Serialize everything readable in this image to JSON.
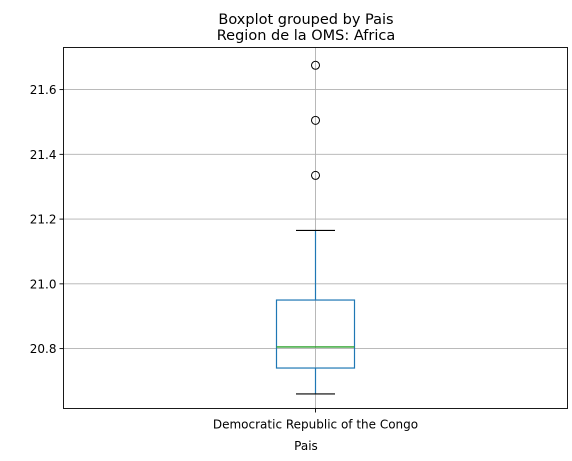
{
  "chart_data": {
    "type": "boxplot",
    "suptitle": "Boxplot grouped by Pais",
    "title": "Region de la OMS: Africa",
    "xlabel": "Pais",
    "ylabel": "",
    "categories": [
      "Democratic Republic of the Congo"
    ],
    "ylim": [
      20.615,
      21.73
    ],
    "yticks": [
      20.8,
      21.0,
      21.2,
      21.4,
      21.6
    ],
    "ytick_labels": [
      "20.8",
      "21.0",
      "21.2",
      "21.4",
      "21.6"
    ],
    "grid": true,
    "boxes": [
      {
        "category": "Democratic Republic of the Congo",
        "whisker_low": 20.66,
        "q1": 20.74,
        "median": 20.805,
        "q3": 20.95,
        "whisker_high": 21.165,
        "outliers": [
          21.335,
          21.505,
          21.675
        ]
      }
    ],
    "colors": {
      "box": "#1f77b4",
      "median": "#2ca02c",
      "cap": "#000000",
      "grid": "#b0b0b0"
    }
  }
}
